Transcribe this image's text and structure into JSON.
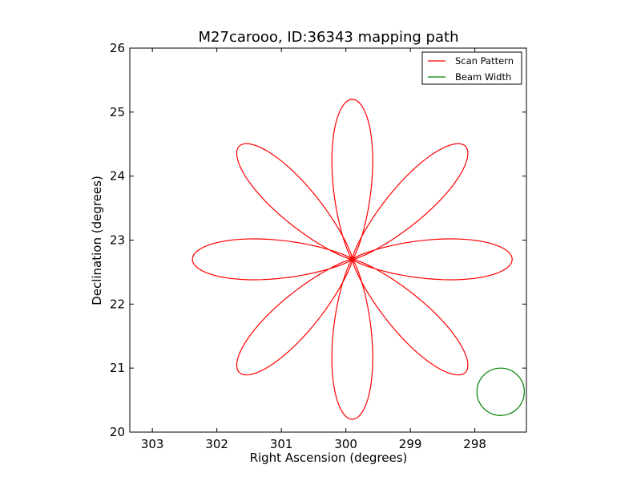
{
  "chart_data": {
    "type": "line",
    "title": "M27carooo, ID:36343 mapping path",
    "xlabel": "Right Ascension (degrees)",
    "ylabel": "Declination (degrees)",
    "xlim": [
      303.35,
      297.2
    ],
    "ylim": [
      20,
      26
    ],
    "x_reversed": true,
    "xticks": [
      "303",
      "302",
      "301",
      "300",
      "299",
      "298"
    ],
    "yticks": [
      "20",
      "21",
      "22",
      "23",
      "24",
      "25",
      "26"
    ],
    "grid": false,
    "legend_position": "top-right",
    "series": [
      {
        "name": "Scan Pattern",
        "color": "#ff0000",
        "pattern": "rose",
        "center": [
          299.9,
          22.7
        ],
        "petals": 8,
        "petal_length_dec": 2.5,
        "petal_half_width_dec": 0.38,
        "first_petal_angle_deg": 90
      },
      {
        "name": "Beam Width",
        "color": "#008000",
        "pattern": "circle",
        "center": [
          297.6,
          20.63
        ],
        "radius_dec": 0.37
      }
    ]
  }
}
